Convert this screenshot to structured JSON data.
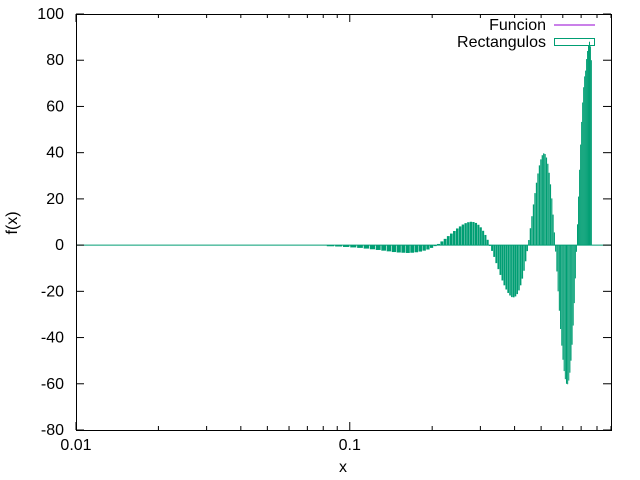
{
  "chart_data": {
    "type": "bar",
    "xlabel": "x",
    "ylabel": "f(x)",
    "x_scale": "log",
    "xlim": [
      0.01,
      0.9
    ],
    "ylim": [
      -80,
      100
    ],
    "x_ticks": [
      {
        "value": 0.01,
        "label": "0.01"
      },
      {
        "value": 0.1,
        "label": "0.1"
      }
    ],
    "y_ticks": [
      {
        "value": -80,
        "label": "-80"
      },
      {
        "value": -60,
        "label": "-60"
      },
      {
        "value": -40,
        "label": "-40"
      },
      {
        "value": -20,
        "label": "-20"
      },
      {
        "value": 0,
        "label": "0"
      },
      {
        "value": 20,
        "label": "20"
      },
      {
        "value": 40,
        "label": "40"
      },
      {
        "value": 60,
        "label": "60"
      },
      {
        "value": 80,
        "label": "80"
      },
      {
        "value": 100,
        "label": "100"
      }
    ],
    "grid": false,
    "legend_position": "top-right",
    "legend": [
      "Funcion",
      "Rectangulos"
    ],
    "bar_color": "#009e73",
    "line_color": "#9400d3",
    "bars": [
      {
        "x": 0.085,
        "y": -0.5
      },
      {
        "x": 0.091,
        "y": -0.6
      },
      {
        "x": 0.097,
        "y": -0.8
      },
      {
        "x": 0.103,
        "y": -1.0
      },
      {
        "x": 0.109,
        "y": -1.2
      },
      {
        "x": 0.115,
        "y": -1.5
      },
      {
        "x": 0.121,
        "y": -1.8
      },
      {
        "x": 0.127,
        "y": -2.1
      },
      {
        "x": 0.133,
        "y": -2.4
      },
      {
        "x": 0.139,
        "y": -2.7
      },
      {
        "x": 0.145,
        "y": -3.0
      },
      {
        "x": 0.151,
        "y": -3.2
      },
      {
        "x": 0.157,
        "y": -3.3
      },
      {
        "x": 0.163,
        "y": -3.4
      },
      {
        "x": 0.169,
        "y": -3.3
      },
      {
        "x": 0.175,
        "y": -3.1
      },
      {
        "x": 0.181,
        "y": -2.8
      },
      {
        "x": 0.187,
        "y": -2.4
      },
      {
        "x": 0.193,
        "y": -1.9
      },
      {
        "x": 0.199,
        "y": -1.2
      },
      {
        "x": 0.205,
        "y": -0.4
      },
      {
        "x": 0.211,
        "y": 0.5
      },
      {
        "x": 0.217,
        "y": 1.6
      },
      {
        "x": 0.223,
        "y": 2.7
      },
      {
        "x": 0.229,
        "y": 3.9
      },
      {
        "x": 0.235,
        "y": 5.0
      },
      {
        "x": 0.241,
        "y": 6.1
      },
      {
        "x": 0.247,
        "y": 7.2
      },
      {
        "x": 0.253,
        "y": 8.1
      },
      {
        "x": 0.259,
        "y": 8.9
      },
      {
        "x": 0.265,
        "y": 9.5
      },
      {
        "x": 0.271,
        "y": 9.9
      },
      {
        "x": 0.277,
        "y": 10.1
      },
      {
        "x": 0.283,
        "y": 10.0
      },
      {
        "x": 0.289,
        "y": 9.6
      },
      {
        "x": 0.295,
        "y": 8.8
      },
      {
        "x": 0.301,
        "y": 7.7
      },
      {
        "x": 0.307,
        "y": 6.2
      },
      {
        "x": 0.313,
        "y": 4.4
      },
      {
        "x": 0.319,
        "y": 2.3
      },
      {
        "x": 0.325,
        "y": 0.1
      },
      {
        "x": 0.331,
        "y": -2.5
      },
      {
        "x": 0.337,
        "y": -5.1
      },
      {
        "x": 0.343,
        "y": -7.8
      },
      {
        "x": 0.349,
        "y": -10.4
      },
      {
        "x": 0.355,
        "y": -12.9
      },
      {
        "x": 0.361,
        "y": -15.3
      },
      {
        "x": 0.367,
        "y": -17.4
      },
      {
        "x": 0.373,
        "y": -19.2
      },
      {
        "x": 0.379,
        "y": -20.7
      },
      {
        "x": 0.385,
        "y": -21.8
      },
      {
        "x": 0.391,
        "y": -22.5
      },
      {
        "x": 0.397,
        "y": -22.6
      },
      {
        "x": 0.403,
        "y": -22.2
      },
      {
        "x": 0.409,
        "y": -21.2
      },
      {
        "x": 0.415,
        "y": -19.6
      },
      {
        "x": 0.421,
        "y": -17.4
      },
      {
        "x": 0.427,
        "y": -14.5
      },
      {
        "x": 0.433,
        "y": -11.1
      },
      {
        "x": 0.439,
        "y": -7.0
      },
      {
        "x": 0.445,
        "y": -2.6
      },
      {
        "x": 0.451,
        "y": 2.2
      },
      {
        "x": 0.457,
        "y": 7.3
      },
      {
        "x": 0.463,
        "y": 12.5
      },
      {
        "x": 0.469,
        "y": 17.6
      },
      {
        "x": 0.475,
        "y": 22.5
      },
      {
        "x": 0.481,
        "y": 27.0
      },
      {
        "x": 0.487,
        "y": 31.0
      },
      {
        "x": 0.493,
        "y": 34.5
      },
      {
        "x": 0.499,
        "y": 37.1
      },
      {
        "x": 0.505,
        "y": 38.9
      },
      {
        "x": 0.511,
        "y": 39.7
      },
      {
        "x": 0.517,
        "y": 39.4
      },
      {
        "x": 0.523,
        "y": 37.9
      },
      {
        "x": 0.529,
        "y": 35.2
      },
      {
        "x": 0.535,
        "y": 31.3
      },
      {
        "x": 0.541,
        "y": 26.3
      },
      {
        "x": 0.547,
        "y": 20.2
      },
      {
        "x": 0.553,
        "y": 13.2
      },
      {
        "x": 0.559,
        "y": 5.5
      },
      {
        "x": 0.565,
        "y": -2.8
      },
      {
        "x": 0.571,
        "y": -11.4
      },
      {
        "x": 0.577,
        "y": -20.0
      },
      {
        "x": 0.583,
        "y": -28.4
      },
      {
        "x": 0.589,
        "y": -36.3
      },
      {
        "x": 0.595,
        "y": -43.5
      },
      {
        "x": 0.601,
        "y": -49.6
      },
      {
        "x": 0.607,
        "y": -54.5
      },
      {
        "x": 0.613,
        "y": -58.0
      },
      {
        "x": 0.619,
        "y": -60.0
      },
      {
        "x": 0.625,
        "y": -60.2
      },
      {
        "x": 0.631,
        "y": -58.6
      },
      {
        "x": 0.637,
        "y": -55.2
      },
      {
        "x": 0.643,
        "y": -50.0
      },
      {
        "x": 0.649,
        "y": -43.1
      },
      {
        "x": 0.655,
        "y": -34.8
      },
      {
        "x": 0.661,
        "y": -25.1
      },
      {
        "x": 0.667,
        "y": -14.4
      },
      {
        "x": 0.673,
        "y": -2.9
      },
      {
        "x": 0.679,
        "y": 9.0
      },
      {
        "x": 0.685,
        "y": 21.0
      },
      {
        "x": 0.691,
        "y": 32.6
      },
      {
        "x": 0.697,
        "y": 43.5
      },
      {
        "x": 0.703,
        "y": 53.3
      },
      {
        "x": 0.709,
        "y": 61.7
      },
      {
        "x": 0.715,
        "y": 68.3
      },
      {
        "x": 0.721,
        "y": 73.0
      },
      {
        "x": 0.727,
        "y": 75.5
      },
      {
        "x": 0.733,
        "y": 80.5
      },
      {
        "x": 0.739,
        "y": 84.0
      },
      {
        "x": 0.745,
        "y": 86.5
      },
      {
        "x": 0.751,
        "y": 88.0
      },
      {
        "x": 0.757,
        "y": 86.0
      },
      {
        "x": 0.763,
        "y": 80.0
      }
    ]
  }
}
